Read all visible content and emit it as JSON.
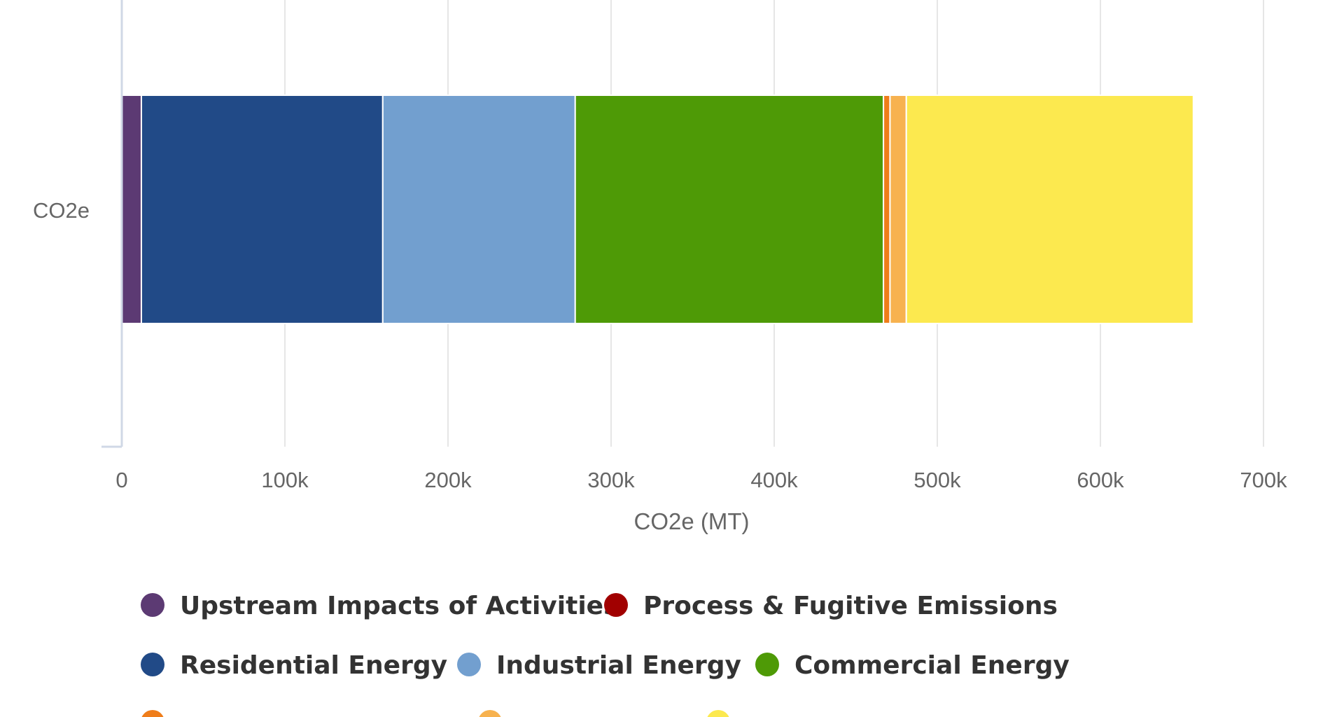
{
  "chart_data": {
    "type": "bar",
    "orientation": "horizontal",
    "stacked": true,
    "categories": [
      "CO2e"
    ],
    "xlabel": "CO2e (MT)",
    "ylabel": "",
    "xlim": [
      0,
      700000
    ],
    "x_ticks": [
      {
        "value": 0,
        "label": "0"
      },
      {
        "value": 100000,
        "label": "100k"
      },
      {
        "value": 200000,
        "label": "200k"
      },
      {
        "value": 300000,
        "label": "300k"
      },
      {
        "value": 400000,
        "label": "400k"
      },
      {
        "value": 500000,
        "label": "500k"
      },
      {
        "value": 600000,
        "label": "600k"
      },
      {
        "value": 700000,
        "label": "700k"
      }
    ],
    "grid": true,
    "legend_position": "bottom",
    "series": [
      {
        "name": "Upstream Impacts of Activities",
        "color": "#5c3a73",
        "values": [
          12000
        ]
      },
      {
        "name": "Process & Fugitive Emissions",
        "color": "#a10000",
        "values": [
          0
        ]
      },
      {
        "name": "Residential Energy",
        "color": "#214a87",
        "values": [
          148000
        ]
      },
      {
        "name": "Industrial Energy",
        "color": "#729fcf",
        "values": [
          118000
        ]
      },
      {
        "name": "Commercial Energy",
        "color": "#4e9a06",
        "values": [
          189000
        ]
      },
      {
        "name": "",
        "color": "#ef7d1a",
        "values": [
          4000
        ]
      },
      {
        "name": "",
        "color": "#f7b24f",
        "values": [
          10000
        ]
      },
      {
        "name": "",
        "color": "#fce94f",
        "values": [
          176000
        ]
      }
    ]
  }
}
